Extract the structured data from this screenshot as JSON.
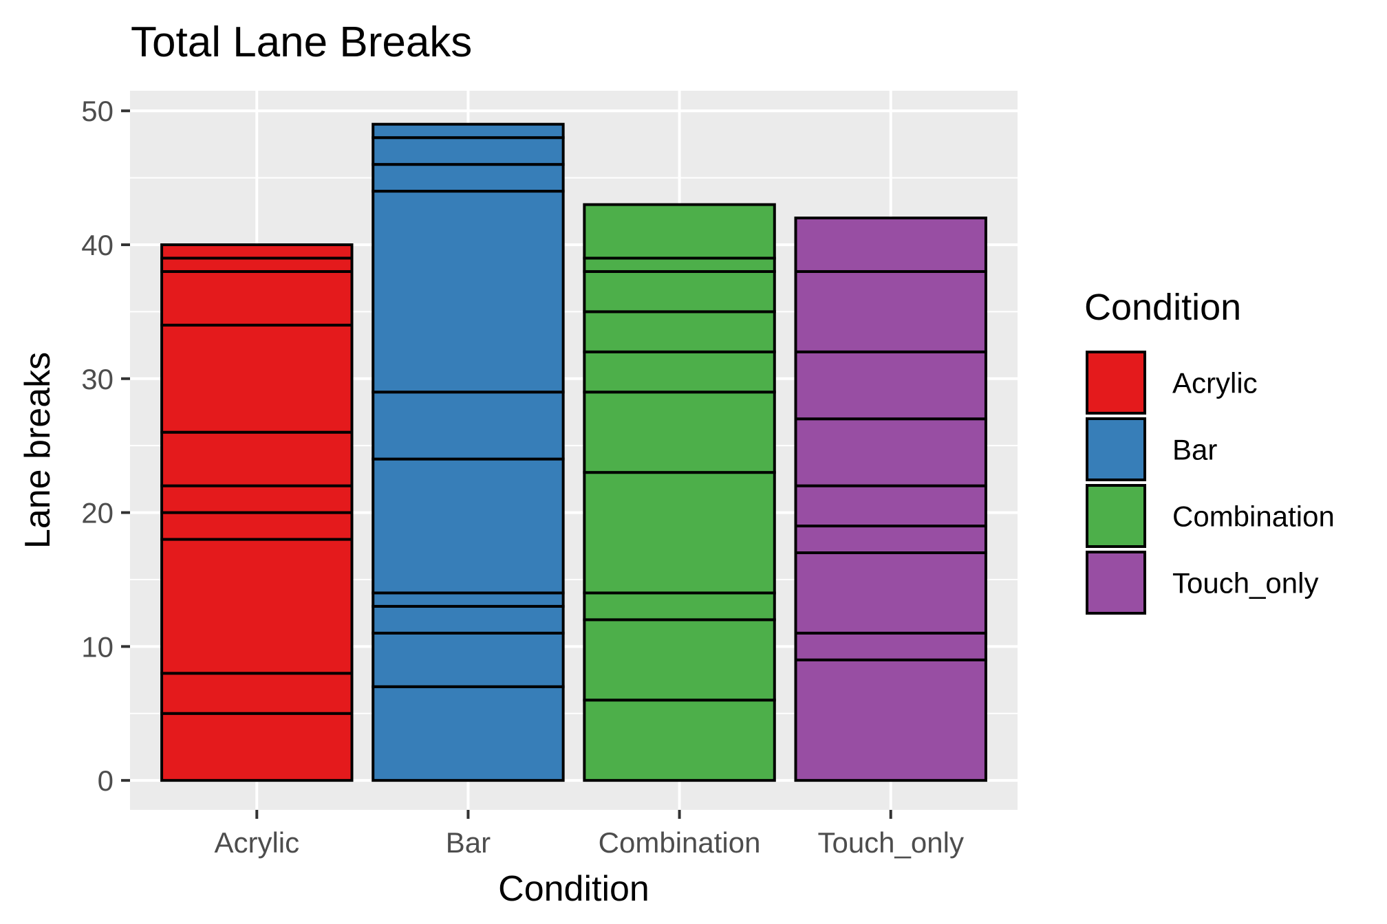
{
  "chart_data": {
    "type": "bar",
    "stacked": true,
    "title": "Total Lane Breaks",
    "xlabel": "Condition",
    "ylabel": "Lane breaks",
    "ylim": [
      -2.2,
      51.5
    ],
    "yticks": [
      0,
      10,
      20,
      30,
      40,
      50
    ],
    "grid": true,
    "legend_position": "right",
    "legend_title": "Condition",
    "categories": [
      "Acrylic",
      "Bar",
      "Combination",
      "Touch_only"
    ],
    "colors": [
      "#E41A1C",
      "#377EB8",
      "#4DAF4A",
      "#984EA3"
    ],
    "legend": [
      "Acrylic",
      "Bar",
      "Combination",
      "Touch_only"
    ],
    "segments": [
      [
        5,
        3,
        10,
        2,
        2,
        4,
        8,
        4,
        1,
        1
      ],
      [
        7,
        4,
        2,
        1,
        10,
        5,
        15,
        2,
        2,
        1
      ],
      [
        6,
        6,
        2,
        9,
        6,
        3,
        3,
        3,
        1,
        4
      ],
      [
        9,
        2,
        6,
        2,
        3,
        5,
        5,
        6,
        4
      ]
    ],
    "totals": [
      40,
      49,
      43,
      42
    ]
  }
}
